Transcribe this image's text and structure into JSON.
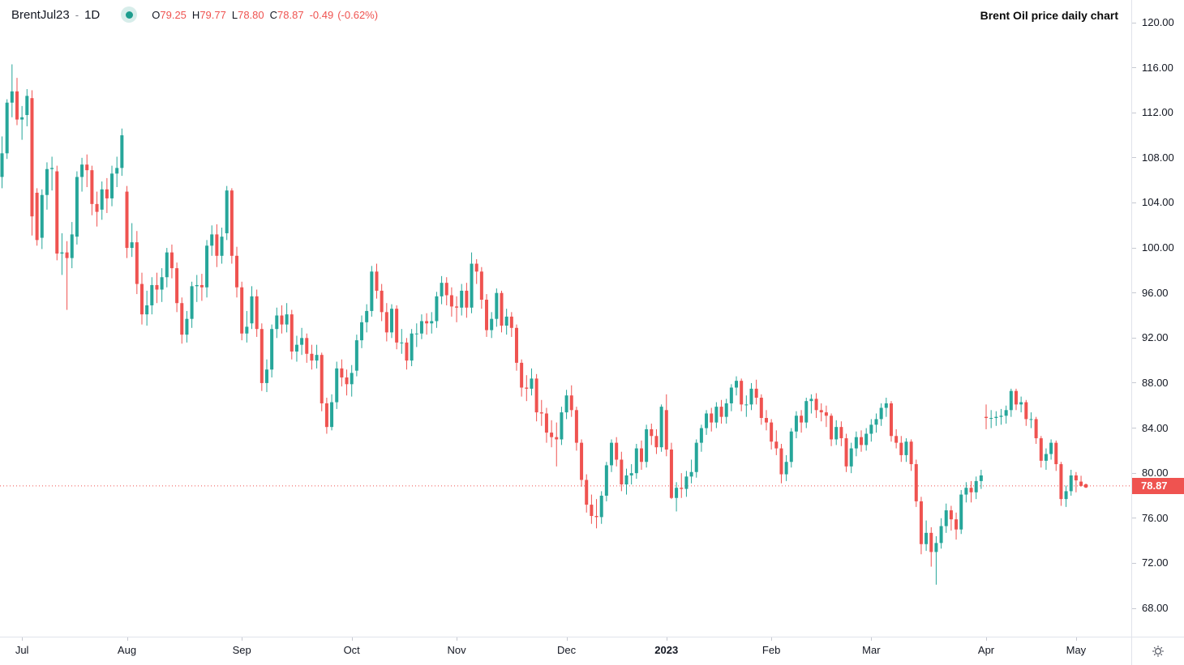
{
  "header": {
    "symbol": "BrentJul23",
    "separator": "-",
    "interval": "1D",
    "ohlc": {
      "o_label": "O",
      "o": "79.25",
      "h_label": "H",
      "h": "79.77",
      "l_label": "L",
      "l": "78.80",
      "c_label": "C",
      "c": "78.87",
      "change": "-0.49",
      "change_pct": "(-0.62%)"
    }
  },
  "title": "Brent Oil price daily chart",
  "colors": {
    "up": "#26a69a",
    "down": "#ef5350",
    "price_line": "#ef5350",
    "badge_bg": "#ef5350",
    "badge_text": "#ffffff",
    "axis_text": "#131722",
    "border": "#e0e3eb"
  },
  "price_axis": {
    "last_price_label": "78.87",
    "ticks": [
      "120.00",
      "116.00",
      "112.00",
      "108.00",
      "104.00",
      "100.00",
      "96.00",
      "92.00",
      "88.00",
      "84.00",
      "80.00",
      "76.00",
      "72.00",
      "68.00"
    ]
  },
  "time_axis": {
    "labels": [
      {
        "text": "Jul",
        "index": 4,
        "bold": false
      },
      {
        "text": "Aug",
        "index": 25,
        "bold": false
      },
      {
        "text": "Sep",
        "index": 48,
        "bold": false
      },
      {
        "text": "Oct",
        "index": 70,
        "bold": false
      },
      {
        "text": "Nov",
        "index": 91,
        "bold": false
      },
      {
        "text": "Dec",
        "index": 113,
        "bold": false
      },
      {
        "text": "2023",
        "index": 133,
        "bold": true
      },
      {
        "text": "Feb",
        "index": 154,
        "bold": false
      },
      {
        "text": "Mar",
        "index": 174,
        "bold": false
      },
      {
        "text": "Apr",
        "index": 197,
        "bold": false
      },
      {
        "text": "May",
        "index": 215,
        "bold": false
      }
    ]
  },
  "chart_data": {
    "type": "candlestick",
    "title": "Brent Oil price daily chart",
    "symbol": "BrentJul23",
    "interval": "1D",
    "x_range": [
      "late Jun 2022",
      "early May 2023"
    ],
    "y_axis": {
      "min": 68,
      "max": 120,
      "tick_step": 4,
      "grid": false
    },
    "legend_position": "top-left",
    "last_price": 78.87,
    "last_ohlc": {
      "open": 79.25,
      "high": 79.77,
      "low": 78.8,
      "close": 78.87,
      "change": -0.49,
      "change_pct": -0.62
    },
    "columns": [
      "open",
      "high",
      "low",
      "close"
    ],
    "candles": [
      [
        106.3,
        109.9,
        105.3,
        108.4
      ],
      [
        108.4,
        113.2,
        107.9,
        112.9
      ],
      [
        112.9,
        116.3,
        111.6,
        113.9
      ],
      [
        113.9,
        115.1,
        110.9,
        111.4
      ],
      [
        111.4,
        112.6,
        109.6,
        111.6
      ],
      [
        111.8,
        114.1,
        110.8,
        113.5
      ],
      [
        113.3,
        114.0,
        101.1,
        102.8
      ],
      [
        104.9,
        105.3,
        100.2,
        100.7
      ],
      [
        100.9,
        105.2,
        99.9,
        104.7
      ],
      [
        104.7,
        107.6,
        103.4,
        107.0
      ],
      [
        107.0,
        108.1,
        105.1,
        107.1
      ],
      [
        106.8,
        107.3,
        98.9,
        99.5
      ],
      [
        99.5,
        101.3,
        97.6,
        99.6
      ],
      [
        99.6,
        100.6,
        94.5,
        99.1
      ],
      [
        99.1,
        102.3,
        98.2,
        101.2
      ],
      [
        101.0,
        106.8,
        100.3,
        106.3
      ],
      [
        106.3,
        108.0,
        105.0,
        107.4
      ],
      [
        107.4,
        108.3,
        105.4,
        106.9
      ],
      [
        106.9,
        107.3,
        102.9,
        103.9
      ],
      [
        103.9,
        105.0,
        101.9,
        103.2
      ],
      [
        103.4,
        105.9,
        102.5,
        105.2
      ],
      [
        105.2,
        106.2,
        103.1,
        104.4
      ],
      [
        104.4,
        107.3,
        103.7,
        106.6
      ],
      [
        106.6,
        108.1,
        105.4,
        107.1
      ],
      [
        107.1,
        110.6,
        106.4,
        110.0
      ],
      [
        105.0,
        105.5,
        99.1,
        100.0
      ],
      [
        100.0,
        102.2,
        99.2,
        100.5
      ],
      [
        100.5,
        101.5,
        95.9,
        96.8
      ],
      [
        96.8,
        97.8,
        93.2,
        94.1
      ],
      [
        94.1,
        96.2,
        93.1,
        94.9
      ],
      [
        94.9,
        97.4,
        94.1,
        96.7
      ],
      [
        96.7,
        97.8,
        95.1,
        96.3
      ],
      [
        96.3,
        98.2,
        95.2,
        97.4
      ],
      [
        97.4,
        100.0,
        96.5,
        99.6
      ],
      [
        99.6,
        100.3,
        97.3,
        98.2
      ],
      [
        98.2,
        98.7,
        94.3,
        95.1
      ],
      [
        95.1,
        95.6,
        91.5,
        92.3
      ],
      [
        92.3,
        94.4,
        91.6,
        93.7
      ],
      [
        93.7,
        97.0,
        92.9,
        96.6
      ],
      [
        96.6,
        97.6,
        95.2,
        96.7
      ],
      [
        96.7,
        97.7,
        95.3,
        96.5
      ],
      [
        96.5,
        100.7,
        95.6,
        100.2
      ],
      [
        100.2,
        102.0,
        99.3,
        101.2
      ],
      [
        101.2,
        102.1,
        98.3,
        99.3
      ],
      [
        99.3,
        101.8,
        98.6,
        101.0
      ],
      [
        101.3,
        105.5,
        100.7,
        105.1
      ],
      [
        105.1,
        105.3,
        98.6,
        99.3
      ],
      [
        99.3,
        100.1,
        95.6,
        96.5
      ],
      [
        96.5,
        97.0,
        91.8,
        92.4
      ],
      [
        92.4,
        94.4,
        91.6,
        93.0
      ],
      [
        93.3,
        96.6,
        92.8,
        95.7
      ],
      [
        95.7,
        96.3,
        92.1,
        92.8
      ],
      [
        92.8,
        93.3,
        87.3,
        88.0
      ],
      [
        88.0,
        90.1,
        87.2,
        89.2
      ],
      [
        89.2,
        93.2,
        88.5,
        92.8
      ],
      [
        92.8,
        94.7,
        92.0,
        94.0
      ],
      [
        94.0,
        94.9,
        92.4,
        93.2
      ],
      [
        93.2,
        95.1,
        92.5,
        94.1
      ],
      [
        94.1,
        94.5,
        90.1,
        90.8
      ],
      [
        90.8,
        92.2,
        89.9,
        91.4
      ],
      [
        91.4,
        92.9,
        90.5,
        92.0
      ],
      [
        92.0,
        92.4,
        89.8,
        90.6
      ],
      [
        90.6,
        91.4,
        89.2,
        90.0
      ],
      [
        90.0,
        91.4,
        89.3,
        90.5
      ],
      [
        90.5,
        90.7,
        85.5,
        86.2
      ],
      [
        86.2,
        86.7,
        83.5,
        84.1
      ],
      [
        84.1,
        87.0,
        83.8,
        86.3
      ],
      [
        86.3,
        89.9,
        85.7,
        89.3
      ],
      [
        89.3,
        90.1,
        87.7,
        88.5
      ],
      [
        88.5,
        89.2,
        86.9,
        87.9
      ],
      [
        87.9,
        89.6,
        86.8,
        88.9
      ],
      [
        89.1,
        92.3,
        88.6,
        91.8
      ],
      [
        91.8,
        94.0,
        91.1,
        93.4
      ],
      [
        93.4,
        95.0,
        92.5,
        94.4
      ],
      [
        94.4,
        98.4,
        93.9,
        97.9
      ],
      [
        97.9,
        98.6,
        95.5,
        96.2
      ],
      [
        96.2,
        96.8,
        93.5,
        94.3
      ],
      [
        94.3,
        95.1,
        91.7,
        92.5
      ],
      [
        92.5,
        95.0,
        92.0,
        94.6
      ],
      [
        94.6,
        94.9,
        91.0,
        91.6
      ],
      [
        91.6,
        92.8,
        90.6,
        91.6
      ],
      [
        91.6,
        92.0,
        89.2,
        90.0
      ],
      [
        90.0,
        92.8,
        89.5,
        92.4
      ],
      [
        92.4,
        93.3,
        91.2,
        92.4
      ],
      [
        92.4,
        94.1,
        91.9,
        93.5
      ],
      [
        93.5,
        94.2,
        92.3,
        93.3
      ],
      [
        93.3,
        94.3,
        92.4,
        93.5
      ],
      [
        93.5,
        96.1,
        92.9,
        95.7
      ],
      [
        95.7,
        97.5,
        95.0,
        96.9
      ],
      [
        96.9,
        97.4,
        94.9,
        95.8
      ],
      [
        95.8,
        96.5,
        93.9,
        94.8
      ],
      [
        94.8,
        95.7,
        93.4,
        94.7
      ],
      [
        94.7,
        96.8,
        94.0,
        96.2
      ],
      [
        96.2,
        96.9,
        93.8,
        94.7
      ],
      [
        94.7,
        99.6,
        94.2,
        98.6
      ],
      [
        98.6,
        99.0,
        96.8,
        97.9
      ],
      [
        97.9,
        98.3,
        94.6,
        95.4
      ],
      [
        95.4,
        95.9,
        92.1,
        92.7
      ],
      [
        92.7,
        94.3,
        92.0,
        93.7
      ],
      [
        93.7,
        96.4,
        93.0,
        96.0
      ],
      [
        96.0,
        96.2,
        92.5,
        93.1
      ],
      [
        93.1,
        94.6,
        92.3,
        93.9
      ],
      [
        93.9,
        94.3,
        92.1,
        92.9
      ],
      [
        92.9,
        93.2,
        89.1,
        89.8
      ],
      [
        89.8,
        90.1,
        86.8,
        87.6
      ],
      [
        87.6,
        88.7,
        86.4,
        87.5
      ],
      [
        87.5,
        89.3,
        86.9,
        88.4
      ],
      [
        88.4,
        88.8,
        84.6,
        85.4
      ],
      [
        85.4,
        86.5,
        84.2,
        85.3
      ],
      [
        85.3,
        85.8,
        82.7,
        83.6
      ],
      [
        83.6,
        84.7,
        82.3,
        83.2
      ],
      [
        83.2,
        84.5,
        80.6,
        83.0
      ],
      [
        83.0,
        85.9,
        82.5,
        85.4
      ],
      [
        85.4,
        87.4,
        84.8,
        86.9
      ],
      [
        86.9,
        87.8,
        85.0,
        85.6
      ],
      [
        85.6,
        85.9,
        82.0,
        82.7
      ],
      [
        82.7,
        83.0,
        78.8,
        79.4
      ],
      [
        79.4,
        79.9,
        76.5,
        77.2
      ],
      [
        77.2,
        78.1,
        75.5,
        76.2
      ],
      [
        76.2,
        77.7,
        75.1,
        76.1
      ],
      [
        76.1,
        78.4,
        75.5,
        78.0
      ],
      [
        78.0,
        81.0,
        77.5,
        80.7
      ],
      [
        80.7,
        83.0,
        80.1,
        82.7
      ],
      [
        82.7,
        83.2,
        80.6,
        81.2
      ],
      [
        81.2,
        81.9,
        78.4,
        79.0
      ],
      [
        79.0,
        80.4,
        78.1,
        79.8
      ],
      [
        79.8,
        80.8,
        79.0,
        80.0
      ],
      [
        80.0,
        82.6,
        79.5,
        82.2
      ],
      [
        82.2,
        82.9,
        80.3,
        81.0
      ],
      [
        81.0,
        84.3,
        80.5,
        83.9
      ],
      [
        83.9,
        84.4,
        82.5,
        83.3
      ],
      [
        83.3,
        83.9,
        81.7,
        82.3
      ],
      [
        82.3,
        86.1,
        81.9,
        85.9
      ],
      [
        85.6,
        87.0,
        81.5,
        82.1
      ],
      [
        82.1,
        82.7,
        77.7,
        77.8
      ],
      [
        77.8,
        79.2,
        76.6,
        78.7
      ],
      [
        78.7,
        80.0,
        77.8,
        78.6
      ],
      [
        78.6,
        80.2,
        77.9,
        79.7
      ],
      [
        79.7,
        81.2,
        79.1,
        80.1
      ],
      [
        80.1,
        83.0,
        79.6,
        82.7
      ],
      [
        82.7,
        84.3,
        81.9,
        84.0
      ],
      [
        84.0,
        85.6,
        83.4,
        85.3
      ],
      [
        85.3,
        85.8,
        83.7,
        84.5
      ],
      [
        84.5,
        86.3,
        84.0,
        85.9
      ],
      [
        85.9,
        86.5,
        84.4,
        85.0
      ],
      [
        85.0,
        86.6,
        84.4,
        86.2
      ],
      [
        86.2,
        87.9,
        85.5,
        87.6
      ],
      [
        87.6,
        88.6,
        86.9,
        88.2
      ],
      [
        88.2,
        88.4,
        85.5,
        86.1
      ],
      [
        86.1,
        86.9,
        85.0,
        86.1
      ],
      [
        86.1,
        88.0,
        85.6,
        87.5
      ],
      [
        87.5,
        88.3,
        86.1,
        86.7
      ],
      [
        86.7,
        87.0,
        84.3,
        84.9
      ],
      [
        84.9,
        85.6,
        83.8,
        84.5
      ],
      [
        84.5,
        84.8,
        82.1,
        82.8
      ],
      [
        82.8,
        83.8,
        81.6,
        82.2
      ],
      [
        82.2,
        82.6,
        79.1,
        79.9
      ],
      [
        79.9,
        81.6,
        79.3,
        81.0
      ],
      [
        81.0,
        84.0,
        80.5,
        83.7
      ],
      [
        83.7,
        85.5,
        83.1,
        85.1
      ],
      [
        85.1,
        85.6,
        83.6,
        84.5
      ],
      [
        84.5,
        86.7,
        84.0,
        86.4
      ],
      [
        86.4,
        87.0,
        85.3,
        86.6
      ],
      [
        86.6,
        87.1,
        84.9,
        85.6
      ],
      [
        85.6,
        86.2,
        84.6,
        85.4
      ],
      [
        85.4,
        86.0,
        84.1,
        85.1
      ],
      [
        85.1,
        85.3,
        82.4,
        83.0
      ],
      [
        83.0,
        84.7,
        82.5,
        84.1
      ],
      [
        84.1,
        84.6,
        82.4,
        83.1
      ],
      [
        83.1,
        83.5,
        80.1,
        80.6
      ],
      [
        80.6,
        82.7,
        80.0,
        82.2
      ],
      [
        82.2,
        83.7,
        81.5,
        83.2
      ],
      [
        83.2,
        83.8,
        81.9,
        82.5
      ],
      [
        82.5,
        84.0,
        82.0,
        83.5
      ],
      [
        83.5,
        84.8,
        82.8,
        84.3
      ],
      [
        84.3,
        85.3,
        83.6,
        84.8
      ],
      [
        84.8,
        86.2,
        84.2,
        85.8
      ],
      [
        85.8,
        86.7,
        85.0,
        86.2
      ],
      [
        86.2,
        86.4,
        82.8,
        83.3
      ],
      [
        83.3,
        83.9,
        82.2,
        82.7
      ],
      [
        82.7,
        83.3,
        81.0,
        81.6
      ],
      [
        81.6,
        83.1,
        81.0,
        82.8
      ],
      [
        82.8,
        83.0,
        80.2,
        80.8
      ],
      [
        80.8,
        81.2,
        77.0,
        77.5
      ],
      [
        77.5,
        77.9,
        72.8,
        73.7
      ],
      [
        73.7,
        75.8,
        73.1,
        74.7
      ],
      [
        74.7,
        75.2,
        71.7,
        73.0
      ],
      [
        73.0,
        74.4,
        70.1,
        73.8
      ],
      [
        73.8,
        76.0,
        73.3,
        75.3
      ],
      [
        75.3,
        77.3,
        74.7,
        76.7
      ],
      [
        76.7,
        77.1,
        74.9,
        75.9
      ],
      [
        75.9,
        76.5,
        74.1,
        75.0
      ],
      [
        75.0,
        78.5,
        74.6,
        78.1
      ],
      [
        78.1,
        79.2,
        77.4,
        78.7
      ],
      [
        78.7,
        79.3,
        77.4,
        78.3
      ],
      [
        78.3,
        79.7,
        77.7,
        79.3
      ],
      [
        79.3,
        80.3,
        78.6,
        79.8
      ],
      [
        85.0,
        86.1,
        83.9,
        84.9
      ],
      [
        84.9,
        85.6,
        84.0,
        84.9
      ],
      [
        84.9,
        85.5,
        84.2,
        85.0
      ],
      [
        85.0,
        85.7,
        84.3,
        85.1
      ],
      [
        85.1,
        86.0,
        84.4,
        85.6
      ],
      [
        85.6,
        87.5,
        85.0,
        87.3
      ],
      [
        87.3,
        87.5,
        85.6,
        86.1
      ],
      [
        86.1,
        86.8,
        85.4,
        86.3
      ],
      [
        86.3,
        86.5,
        84.2,
        84.8
      ],
      [
        84.8,
        85.4,
        84.0,
        84.8
      ],
      [
        84.8,
        85.0,
        82.6,
        83.1
      ],
      [
        83.1,
        83.3,
        80.5,
        81.1
      ],
      [
        81.1,
        82.2,
        80.3,
        81.7
      ],
      [
        81.7,
        83.0,
        81.2,
        82.7
      ],
      [
        82.7,
        82.9,
        80.2,
        80.8
      ],
      [
        80.8,
        81.0,
        77.1,
        77.7
      ],
      [
        77.7,
        78.9,
        77.0,
        78.4
      ],
      [
        78.4,
        80.3,
        78.0,
        79.8
      ],
      [
        79.8,
        80.1,
        78.3,
        79.36
      ],
      [
        79.25,
        79.77,
        78.8,
        78.87
      ]
    ]
  }
}
